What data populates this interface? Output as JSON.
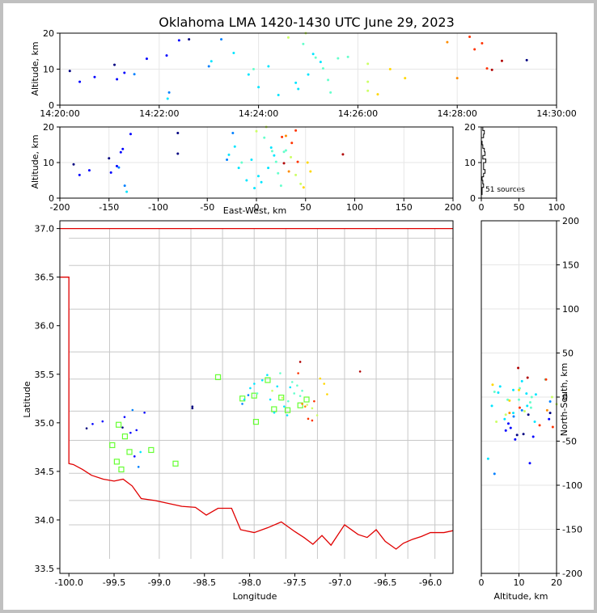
{
  "chart_data": {
    "type": "scatter",
    "title": "Oklahoma LMA 1420-1430 UTC June 29, 2023",
    "source_count_label": "51 sources",
    "colors": [
      "#000080",
      "#0000ff",
      "#0080ff",
      "#00e5ff",
      "#66ffcc",
      "#ccff66",
      "#ffd700",
      "#ff8c00",
      "#ff3300",
      "#b00000"
    ],
    "station_color": "#66ff33",
    "border_color": "#e00000",
    "panels": {
      "time_altitude": {
        "xlabel": "",
        "ylabel": "Altitude, km",
        "xlim_minutes": [
          0,
          10
        ],
        "ylim": [
          0,
          20
        ],
        "xticks": [
          "14:20:00",
          "14:22:00",
          "14:24:00",
          "14:26:00",
          "14:28:00",
          "14:30:00"
        ],
        "yticks": [
          "0",
          "10",
          "20"
        ]
      },
      "ew_altitude": {
        "xlabel": "East-West, km",
        "ylabel": "Altitude, km",
        "xlim": [
          -200,
          200
        ],
        "ylim": [
          0,
          20
        ],
        "xticks": [
          "-200",
          "-150",
          "-100",
          "-50",
          "0",
          "50",
          "100",
          "150",
          "200"
        ],
        "yticks": [
          "0",
          "10",
          "20"
        ]
      },
      "histogram": {
        "xlim": [
          0,
          100
        ],
        "ylim": [
          0,
          20
        ],
        "xticks": [
          "0",
          "50",
          "100"
        ],
        "yticks": [
          "0",
          "10",
          "20"
        ]
      },
      "plan_view": {
        "xlabel": "Longitude",
        "ylabel": "Latitude",
        "xlim": [
          -100.1,
          -95.75
        ],
        "ylim": [
          33.45,
          37.08
        ],
        "xticks": [
          "-100.0",
          "-99.5",
          "-99.0",
          "-98.5",
          "-98.0",
          "-97.5",
          "-97.0",
          "-96.5",
          "-96.0"
        ],
        "yticks": [
          "33.5",
          "34.0",
          "34.5",
          "35.0",
          "35.5",
          "36.0",
          "36.5",
          "37.0"
        ]
      },
      "altitude_ns": {
        "xlabel": "Altitude, km",
        "ylabel": "North-South, km",
        "xlim": [
          0,
          20
        ],
        "ylim": [
          -200,
          200
        ],
        "xticks": [
          "0",
          "10",
          "20"
        ],
        "yticks": [
          "-200",
          "-150",
          "-100",
          "-50",
          "0",
          "50",
          "100",
          "150",
          "200"
        ]
      }
    },
    "sources": [
      {
        "t": 0.2,
        "alt": 9.5,
        "ew": -186,
        "ns": -43,
        "c": 0
      },
      {
        "t": 0.4,
        "alt": 6.5,
        "ew": -180,
        "ns": -38,
        "c": 1
      },
      {
        "t": 0.7,
        "alt": 7.8,
        "ew": -170,
        "ns": -35,
        "c": 1
      },
      {
        "t": 1.1,
        "alt": 11.2,
        "ew": -150,
        "ns": -42,
        "c": 0
      },
      {
        "t": 1.15,
        "alt": 7.2,
        "ew": -148,
        "ns": -30,
        "c": 1
      },
      {
        "t": 1.3,
        "alt": 9.0,
        "ew": -142,
        "ns": -48,
        "c": 1
      },
      {
        "t": 1.5,
        "alt": 8.6,
        "ew": -140,
        "ns": -22,
        "c": 2
      },
      {
        "t": 1.75,
        "alt": 12.9,
        "ew": -138,
        "ns": -75,
        "c": 1
      },
      {
        "t": 2.15,
        "alt": 13.8,
        "ew": -136,
        "ns": -45,
        "c": 1
      },
      {
        "t": 2.2,
        "alt": 3.5,
        "ew": -134,
        "ns": -87,
        "c": 2
      },
      {
        "t": 2.17,
        "alt": 1.8,
        "ew": -132,
        "ns": -70,
        "c": 3
      },
      {
        "t": 2.4,
        "alt": 18.0,
        "ew": -128,
        "ns": -25,
        "c": 1
      },
      {
        "t": 2.6,
        "alt": 18.3,
        "ew": -80,
        "ns": -18,
        "c": 0
      },
      {
        "t": 3.0,
        "alt": 10.8,
        "ew": -30,
        "ns": -15,
        "c": 2
      },
      {
        "t": 3.05,
        "alt": 12.2,
        "ew": -28,
        "ns": -10,
        "c": 3
      },
      {
        "t": 3.25,
        "alt": 18.3,
        "ew": -24,
        "ns": -5,
        "c": 2
      },
      {
        "t": 3.5,
        "alt": 14.5,
        "ew": -22,
        "ns": 3,
        "c": 3
      },
      {
        "t": 3.8,
        "alt": 8.5,
        "ew": -18,
        "ns": 8,
        "c": 3
      },
      {
        "t": 3.9,
        "alt": 10.0,
        "ew": -15,
        "ns": -3,
        "c": 4
      },
      {
        "t": 4.0,
        "alt": 5.0,
        "ew": -10,
        "ns": 12,
        "c": 3
      },
      {
        "t": 4.2,
        "alt": 10.8,
        "ew": -5,
        "ns": 18,
        "c": 3
      },
      {
        "t": 4.4,
        "alt": 2.8,
        "ew": -2,
        "ns": -10,
        "c": 3
      },
      {
        "t": 4.6,
        "alt": 18.8,
        "ew": 0,
        "ns": 0,
        "c": 5
      },
      {
        "t": 4.75,
        "alt": 6.2,
        "ew": 2,
        "ns": -25,
        "c": 3
      },
      {
        "t": 4.8,
        "alt": 4.5,
        "ew": 5,
        "ns": 5,
        "c": 3
      },
      {
        "t": 4.9,
        "alt": 17.0,
        "ew": 8,
        "ns": 20,
        "c": 4
      },
      {
        "t": 4.95,
        "alt": 20.0,
        "ew": 10,
        "ns": -8,
        "c": 5
      },
      {
        "t": 5.0,
        "alt": 8.5,
        "ew": 12,
        "ns": -18,
        "c": 3
      },
      {
        "t": 5.1,
        "alt": 14.2,
        "ew": 15,
        "ns": -28,
        "c": 3
      },
      {
        "t": 5.15,
        "alt": 13.2,
        "ew": 16,
        "ns": -12,
        "c": 4
      },
      {
        "t": 5.25,
        "alt": 12.0,
        "ew": 18,
        "ns": 4,
        "c": 3
      },
      {
        "t": 5.3,
        "alt": 10.2,
        "ew": 20,
        "ns": 10,
        "c": 4
      },
      {
        "t": 5.4,
        "alt": 7.0,
        "ew": 22,
        "ns": -3,
        "c": 4
      },
      {
        "t": 5.45,
        "alt": 3.5,
        "ew": 25,
        "ns": 6,
        "c": 4
      },
      {
        "t": 5.6,
        "alt": 13.0,
        "ew": 28,
        "ns": -6,
        "c": 4
      },
      {
        "t": 5.8,
        "alt": 13.4,
        "ew": 30,
        "ns": 0,
        "c": 4
      },
      {
        "t": 6.2,
        "alt": 11.5,
        "ew": 35,
        "ns": -16,
        "c": 5
      },
      {
        "t": 6.2,
        "alt": 6.5,
        "ew": 40,
        "ns": -20,
        "c": 5
      },
      {
        "t": 6.2,
        "alt": 4.0,
        "ew": 45,
        "ns": -28,
        "c": 5
      },
      {
        "t": 6.4,
        "alt": 3.0,
        "ew": 48,
        "ns": 14,
        "c": 6
      },
      {
        "t": 6.65,
        "alt": 10.0,
        "ew": 52,
        "ns": 8,
        "c": 6
      },
      {
        "t": 6.95,
        "alt": 7.5,
        "ew": 55,
        "ns": -4,
        "c": 6
      },
      {
        "t": 7.8,
        "alt": 17.5,
        "ew": 30,
        "ns": -15,
        "c": 7
      },
      {
        "t": 8.0,
        "alt": 7.5,
        "ew": 33,
        "ns": -18,
        "c": 7
      },
      {
        "t": 8.25,
        "alt": 19.0,
        "ew": 40,
        "ns": -34,
        "c": 8
      },
      {
        "t": 8.35,
        "alt": 15.5,
        "ew": 36,
        "ns": -32,
        "c": 8
      },
      {
        "t": 8.5,
        "alt": 17.2,
        "ew": 26,
        "ns": 20,
        "c": 8
      },
      {
        "t": 8.6,
        "alt": 10.2,
        "ew": 42,
        "ns": -12,
        "c": 8
      },
      {
        "t": 8.7,
        "alt": 9.8,
        "ew": 28,
        "ns": 33,
        "c": 9
      },
      {
        "t": 8.9,
        "alt": 12.3,
        "ew": 88,
        "ns": 22,
        "c": 9
      },
      {
        "t": 9.4,
        "alt": 12.5,
        "ew": -80,
        "ns": -20,
        "c": 0
      }
    ],
    "stations": [
      {
        "lon": -98.35,
        "lat": 35.47
      },
      {
        "lon": -98.08,
        "lat": 35.25
      },
      {
        "lon": -97.95,
        "lat": 35.28
      },
      {
        "lon": -97.8,
        "lat": 35.44
      },
      {
        "lon": -97.65,
        "lat": 35.26
      },
      {
        "lon": -97.58,
        "lat": 35.13
      },
      {
        "lon": -97.44,
        "lat": 35.18
      },
      {
        "lon": -97.37,
        "lat": 35.24
      },
      {
        "lon": -97.73,
        "lat": 35.14
      },
      {
        "lon": -97.93,
        "lat": 35.01
      },
      {
        "lon": -99.45,
        "lat": 34.98
      },
      {
        "lon": -99.38,
        "lat": 34.86
      },
      {
        "lon": -99.52,
        "lat": 34.77
      },
      {
        "lon": -99.33,
        "lat": 34.7
      },
      {
        "lon": -99.47,
        "lat": 34.6
      },
      {
        "lon": -99.42,
        "lat": 34.52
      },
      {
        "lon": -99.09,
        "lat": 34.72
      },
      {
        "lon": -98.82,
        "lat": 34.58
      }
    ]
  }
}
